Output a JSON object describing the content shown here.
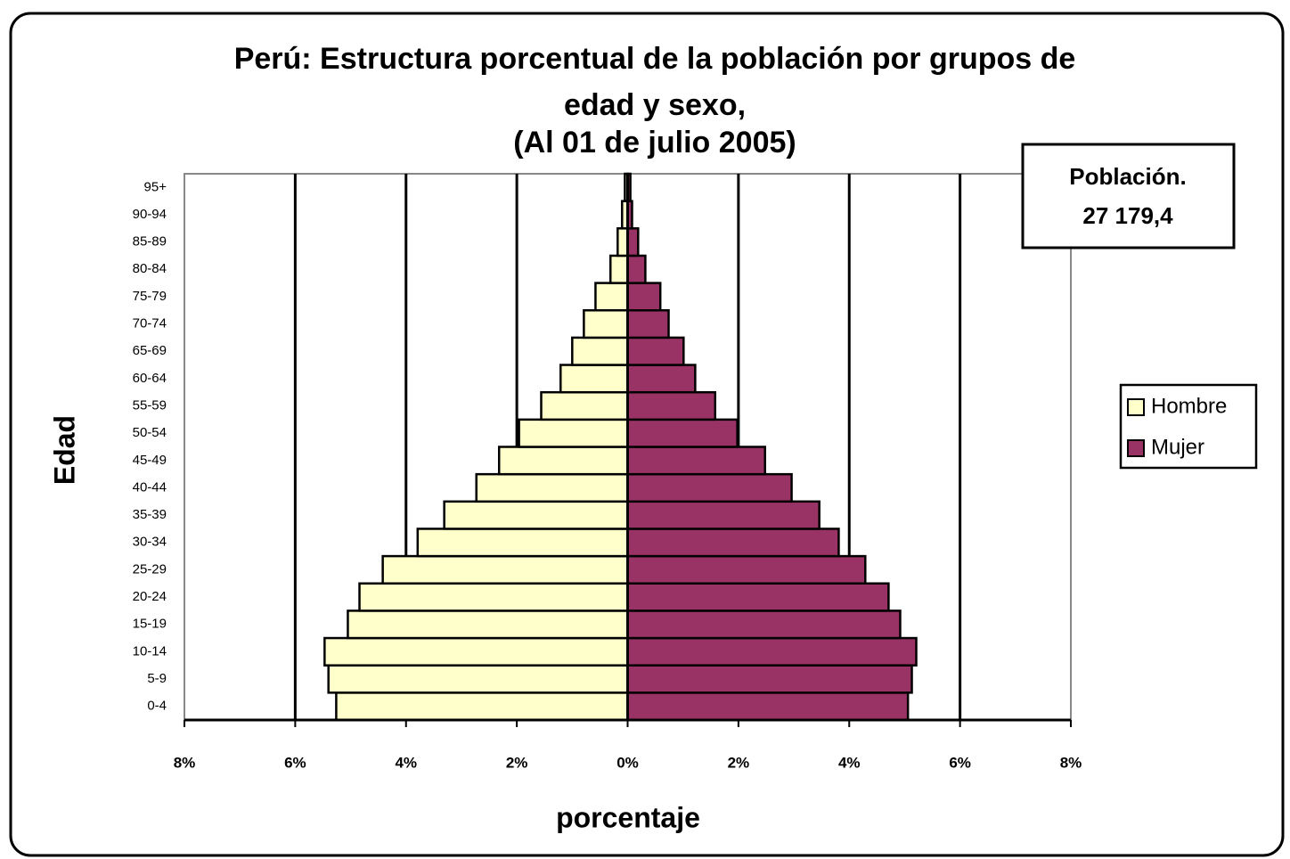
{
  "chart_data": {
    "type": "pyramid",
    "title": [
      "Perú: Estructura porcentual de la población por grupos de",
      "edad y sexo,",
      "(Al 01 de julio 2005)"
    ],
    "annotation": [
      "Población.",
      "27 179,4"
    ],
    "xlabel": "porcentaje",
    "ylabel": "Edad",
    "categories": [
      "0-4",
      "5-9",
      "10-14",
      "15-19",
      "20-24",
      "25-29",
      "30-34",
      "35-39",
      "40-44",
      "45-49",
      "50-54",
      "55-59",
      "60-64",
      "65-69",
      "70-74",
      "75-79",
      "80-84",
      "85-89",
      "90-94",
      "95+"
    ],
    "series": [
      {
        "name": "Hombre",
        "color": "#ffffcc",
        "values": [
          -5.26,
          -5.4,
          -5.47,
          -5.05,
          -4.84,
          -4.42,
          -3.79,
          -3.31,
          -2.73,
          -2.32,
          -1.96,
          -1.56,
          -1.21,
          -1.0,
          -0.79,
          -0.58,
          -0.31,
          -0.18,
          -0.1,
          -0.05
        ]
      },
      {
        "name": "Mujer",
        "color": "#993366",
        "values": [
          5.06,
          5.13,
          5.21,
          4.92,
          4.71,
          4.29,
          3.81,
          3.46,
          2.96,
          2.48,
          1.98,
          1.58,
          1.22,
          1.01,
          0.74,
          0.59,
          0.32,
          0.19,
          0.08,
          0.05
        ]
      }
    ],
    "xlim": [
      -8,
      8
    ],
    "xticks": [
      {
        "value": -8,
        "label": "8%"
      },
      {
        "value": -6,
        "label": "6%"
      },
      {
        "value": -4,
        "label": "4%"
      },
      {
        "value": -2,
        "label": "2%"
      },
      {
        "value": 0,
        "label": "0%"
      },
      {
        "value": 2,
        "label": "2%"
      },
      {
        "value": 4,
        "label": "4%"
      },
      {
        "value": 6,
        "label": "6%"
      },
      {
        "value": 8,
        "label": "8%"
      }
    ],
    "grid": true,
    "legend": "right"
  }
}
